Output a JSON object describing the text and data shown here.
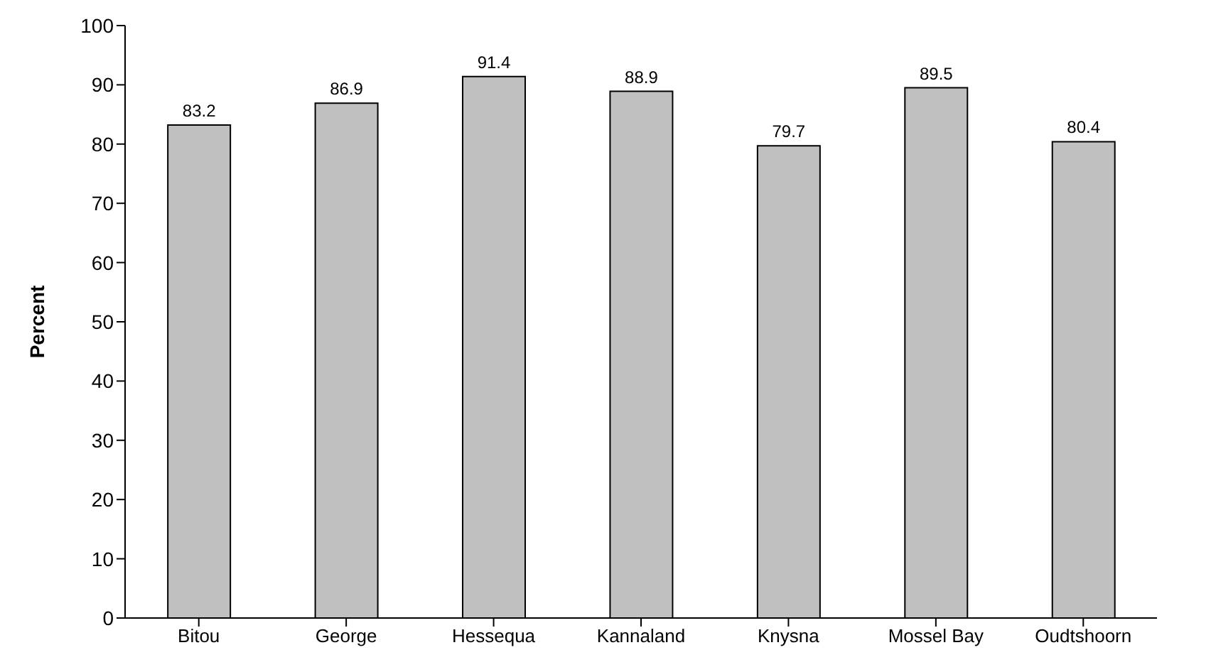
{
  "chart_data": {
    "type": "bar",
    "ylabel": "Percent",
    "categories": [
      "Bitou",
      "George",
      "Hessequa",
      "Kannaland",
      "Knysna",
      "Mossel Bay",
      "Oudtshoorn"
    ],
    "values": [
      83.2,
      86.9,
      91.4,
      88.9,
      79.7,
      89.5,
      80.4
    ],
    "color": "#c0c0c0",
    "ylim": [
      0,
      100
    ],
    "yticks": [
      0,
      10,
      20,
      30,
      40,
      50,
      60,
      70,
      80,
      90,
      100
    ],
    "data_labels": true,
    "grid": false,
    "legend": false
  }
}
